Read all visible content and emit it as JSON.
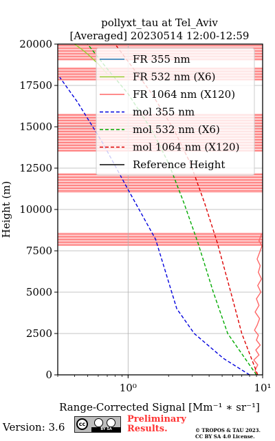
{
  "title": {
    "line1": "pollyxt_tau at Tel_Aviv",
    "line2": "[Averaged] 20230514 12:00-12:59"
  },
  "footer": {
    "version": "Version: 3.6",
    "cc_badge": {
      "left": "cc",
      "bottom": "BY   SA"
    },
    "prelim_line1": "Preliminary",
    "prelim_line2": "Results.",
    "copyright_line1": "© TROPOS & TAU 2023.",
    "copyright_line2": "CC BY SA 4.0 License."
  },
  "colors": {
    "fr355": "#1f77b4",
    "fr532": "#9ACD32",
    "fr1064": "#ff6666",
    "fr1064_band": "#ffcccc",
    "mol355": "#0000dd",
    "mol532": "#00aa00",
    "mol1064": "#dd0000",
    "reference": "#000000",
    "grid": "#b0b0b0"
  },
  "chart_data": {
    "type": "line",
    "xlabel": "Range-Corrected Signal [Mm⁻¹ ∗ sr⁻¹]",
    "ylabel": "Height (m)",
    "x_scale": "log",
    "xlim": [
      0.3,
      10
    ],
    "ylim": [
      0,
      20000
    ],
    "x_ticks": [
      {
        "value": 1,
        "label": "10⁰"
      },
      {
        "value": 10,
        "label": "10¹"
      }
    ],
    "y_ticks": [
      0,
      2500,
      5000,
      7500,
      10000,
      12500,
      15000,
      17500,
      20000
    ],
    "y_tick_labels": [
      "0",
      "2500",
      "5000",
      "7500",
      "10000",
      "12500",
      "15000",
      "17500",
      "20000"
    ],
    "grid": true,
    "legend_position": "top-right",
    "series": [
      {
        "name": "FR 355 nm",
        "style": "solid",
        "color_key": "fr355",
        "points": []
      },
      {
        "name": "FR 532 nm (X6)",
        "style": "solid",
        "color_key": "fr532",
        "points": [
          [
            0.4,
            20000
          ],
          [
            0.45,
            19700
          ],
          [
            0.5,
            19400
          ],
          [
            0.6,
            18800
          ],
          [
            0.7,
            18200
          ]
        ]
      },
      {
        "name": "FR 1064 nm (X120)",
        "style": "solid",
        "color_key": "fr1064",
        "points": [
          [
            9.0,
            0
          ],
          [
            8.8,
            300
          ],
          [
            9.2,
            600
          ],
          [
            8.6,
            900
          ],
          [
            9.4,
            1200
          ],
          [
            8.9,
            1500
          ],
          [
            9.6,
            1800
          ],
          [
            9.0,
            2100
          ],
          [
            9.3,
            2400
          ],
          [
            8.7,
            2700
          ],
          [
            9.1,
            3000
          ],
          [
            9.5,
            3400
          ],
          [
            8.8,
            3800
          ],
          [
            9.4,
            4200
          ],
          [
            9.0,
            4600
          ],
          [
            9.7,
            5000
          ],
          [
            9.2,
            5400
          ],
          [
            9.8,
            5800
          ],
          [
            9.3,
            6200
          ],
          [
            9.6,
            6600
          ],
          [
            9.1,
            7000
          ],
          [
            9.5,
            7400
          ],
          [
            9.9,
            7800
          ],
          [
            9.4,
            8100
          ],
          [
            9.8,
            8500
          ]
        ]
      },
      {
        "name": "mol 355 nm",
        "style": "dashed",
        "color_key": "mol355",
        "points": [
          [
            8.0,
            0
          ],
          [
            5.1,
            1000
          ],
          [
            3.1,
            2500
          ],
          [
            2.3,
            4000
          ],
          [
            1.6,
            8200
          ],
          [
            1.0,
            11200
          ],
          [
            0.65,
            14000
          ],
          [
            0.42,
            16500
          ],
          [
            0.31,
            18000
          ]
        ]
      },
      {
        "name": "mol 532 nm (X6)",
        "style": "dashed",
        "color_key": "mol532",
        "points": [
          [
            9.0,
            0
          ],
          [
            5.5,
            2500
          ],
          [
            4.3,
            5000
          ],
          [
            3.3,
            8000
          ],
          [
            2.6,
            10400
          ],
          [
            2.0,
            12800
          ],
          [
            1.5,
            14800
          ],
          [
            1.0,
            17000
          ],
          [
            0.7,
            18500
          ],
          [
            0.5,
            20000
          ]
        ]
      },
      {
        "name": "mol 1064 nm (X120)",
        "style": "dashed",
        "color_key": "mol1064",
        "points": [
          [
            9.2,
            0
          ],
          [
            7.0,
            2500
          ],
          [
            5.8,
            5000
          ],
          [
            4.6,
            8000
          ],
          [
            3.7,
            10400
          ],
          [
            2.9,
            12800
          ],
          [
            2.2,
            14800
          ],
          [
            1.5,
            17000
          ],
          [
            1.1,
            18500
          ],
          [
            0.8,
            20000
          ]
        ]
      },
      {
        "name": "Reference Height",
        "style": "solid",
        "color_key": "reference",
        "points": []
      }
    ],
    "fr1064_bands": [
      [
        19000,
        20000
      ],
      [
        17800,
        18600
      ],
      [
        13500,
        15800
      ],
      [
        11000,
        12200
      ],
      [
        7800,
        8600
      ]
    ]
  }
}
